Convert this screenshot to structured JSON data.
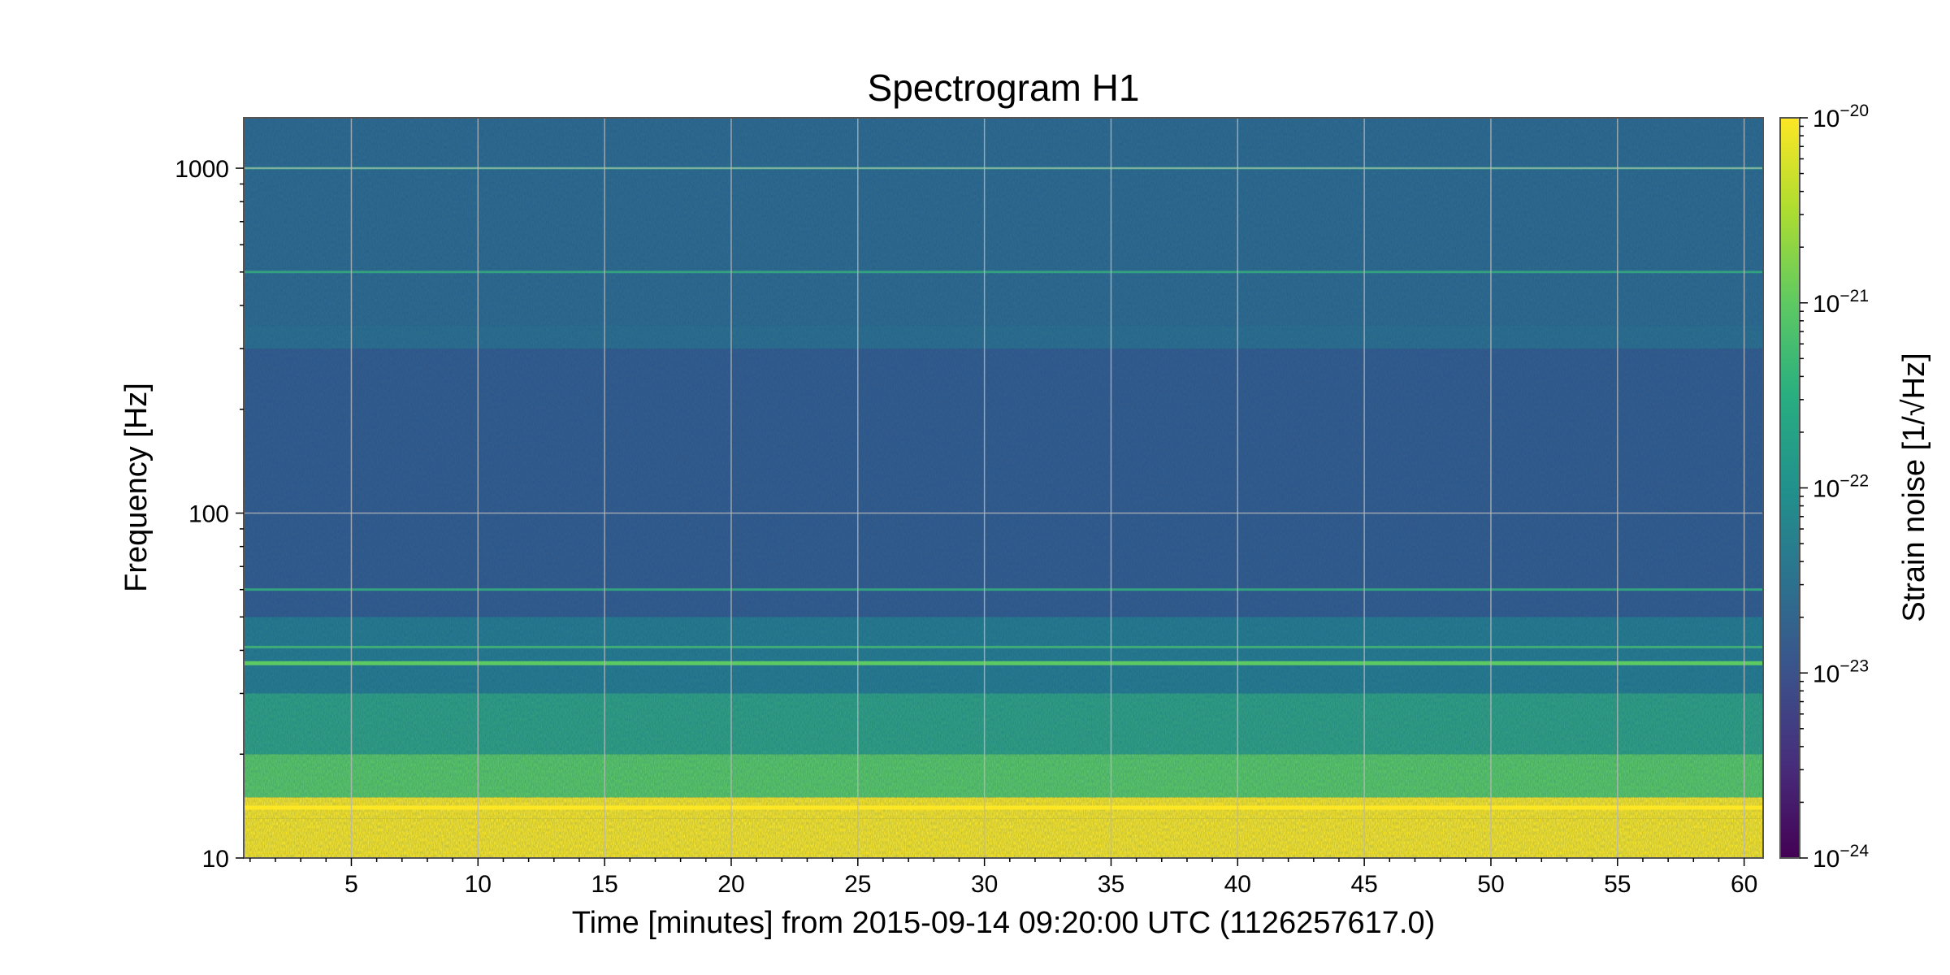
{
  "chart_data": {
    "type": "heatmap",
    "title": "Spectrogram H1",
    "xlabel": "Time [minutes] from 2015-09-14 09:20:00 UTC (1126257617.0)",
    "ylabel": "Frequency [Hz]",
    "xlim": [
      0.75,
      60.75
    ],
    "ylim": [
      10,
      1400
    ],
    "yscale": "log",
    "grid": true,
    "x_ticks": [
      5,
      10,
      15,
      20,
      25,
      30,
      35,
      40,
      45,
      50,
      55,
      60
    ],
    "x_tick_labels": [
      "5",
      "10",
      "15",
      "20",
      "25",
      "30",
      "35",
      "40",
      "45",
      "50",
      "55",
      "60"
    ],
    "y_ticks": [
      10,
      100,
      1000
    ],
    "y_tick_labels": [
      "10",
      "100",
      "1000"
    ],
    "colormap": [
      "#440154",
      "#3b528b",
      "#21908d",
      "#5dc963",
      "#fde725"
    ],
    "colorbar": {
      "label": "Strain noise [1/√Hz]",
      "scale": "log",
      "range": [
        1e-24,
        1e-20
      ],
      "ticks": [
        {
          "value": 1e-24,
          "base": "10",
          "exp": "−24"
        },
        {
          "value": 1e-23,
          "base": "10",
          "exp": "−23"
        },
        {
          "value": 1e-22,
          "base": "10",
          "exp": "−22"
        },
        {
          "value": 1e-21,
          "base": "10",
          "exp": "−21"
        },
        {
          "value": 1e-20,
          "base": "10",
          "exp": "−20"
        }
      ]
    },
    "frequency_bands": [
      {
        "f_low": 10,
        "f_high": 13,
        "level": 1e-20
      },
      {
        "f_low": 13,
        "f_high": 15,
        "level": 1e-20
      },
      {
        "f_low": 15,
        "f_high": 20,
        "level": 1e-21
      },
      {
        "f_low": 20,
        "f_high": 30,
        "level": 2e-22
      },
      {
        "f_low": 30,
        "f_high": 50,
        "level": 5e-23
      },
      {
        "f_low": 50,
        "f_high": 300,
        "level": 1.5e-23
      },
      {
        "f_low": 300,
        "f_high": 350,
        "level": 3e-23
      },
      {
        "f_low": 350,
        "f_high": 1400,
        "level": 2.5e-23
      }
    ],
    "spectral_lines": [
      {
        "freq": 14,
        "level": 1e-20
      },
      {
        "freq": 36.7,
        "level": 1e-21
      },
      {
        "freq": 40.9,
        "level": 3e-22
      },
      {
        "freq": 60,
        "level": 2e-22
      },
      {
        "freq": 500,
        "level": 2e-22
      },
      {
        "freq": 1000,
        "level": 2e-22
      }
    ]
  }
}
